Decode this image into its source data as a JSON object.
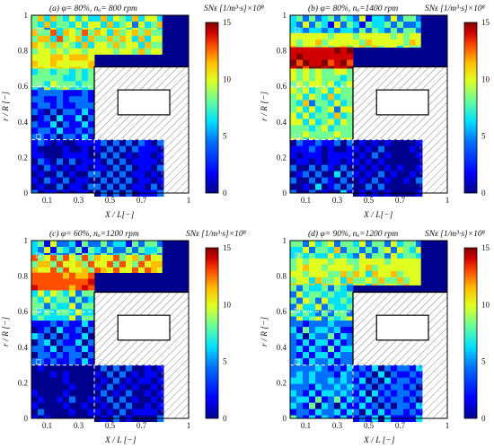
{
  "figure": {
    "description_visible": false
  },
  "colorbar": {
    "ticks": [
      "0",
      "5",
      "10",
      "15"
    ],
    "label": "SNᴇ [1/m³·s]×10⁸",
    "colors": [
      "#00008f",
      "#0000ff",
      "#0070ff",
      "#00e0ff",
      "#70ff90",
      "#e0ff20",
      "#ffc000",
      "#ff5000",
      "#d00000",
      "#800000"
    ]
  },
  "chart_data": [
    {
      "type": "heatmap",
      "panel": "(a)",
      "title": "(a)    φ= 80%, nₒ= 800 rpm",
      "xlabel": "X / L[−]",
      "ylabel": "r / R [−]",
      "xlim": [
        0,
        1
      ],
      "ylim": [
        0,
        1
      ],
      "zlim": [
        0,
        15
      ],
      "x_ticks": [
        "0.1",
        "0.3",
        "0.5",
        "0.7",
        "1"
      ],
      "y_ticks": [
        "0",
        "0.2",
        "0.4",
        "0.6",
        "0.8",
        "1"
      ],
      "colorbar_label": "SNᴇ [1/m³·s]×10⁸",
      "colorbar_ticks": [
        "0",
        "5",
        "10",
        "15"
      ],
      "bands": [
        {
          "y0": 0.92,
          "y1": 1.0,
          "x0": 0.0,
          "x1": 0.83,
          "mean": 7
        },
        {
          "y0": 0.78,
          "y1": 0.92,
          "x0": 0.0,
          "x1": 0.83,
          "mean": 8
        },
        {
          "y0": 0.7,
          "y1": 0.78,
          "x0": 0.0,
          "x1": 0.4,
          "mean": 9
        },
        {
          "y0": 0.58,
          "y1": 0.7,
          "x0": 0.0,
          "x1": 0.4,
          "mean": 6
        },
        {
          "y0": 0.3,
          "y1": 0.58,
          "x0": 0.0,
          "x1": 0.4,
          "mean": 3
        },
        {
          "y0": 0.0,
          "y1": 0.3,
          "x0": 0.0,
          "x1": 0.4,
          "mean": 1.5
        },
        {
          "y0": 0.0,
          "y1": 0.3,
          "x0": 0.4,
          "x1": 0.83,
          "mean": 2
        }
      ]
    },
    {
      "type": "heatmap",
      "panel": "(b)",
      "title": "(b)    φ= 80%, nₒ=1400 rpm",
      "xlabel": "X / L[−]",
      "ylabel": "r / R [−]",
      "xlim": [
        0,
        1
      ],
      "ylim": [
        0,
        1
      ],
      "zlim": [
        0,
        15
      ],
      "x_ticks": [
        "0.1",
        "0.3",
        "0.5",
        "0.7",
        "1"
      ],
      "y_ticks": [
        "0",
        "0.2",
        "0.4",
        "0.6",
        "0.8",
        "1"
      ],
      "colorbar_label": "SNᴇ [1/m³·s]×10⁸",
      "colorbar_ticks": [
        "0",
        "5",
        "10",
        "15"
      ],
      "bands": [
        {
          "y0": 0.9,
          "y1": 1.0,
          "x0": 0.0,
          "x1": 0.83,
          "mean": 5
        },
        {
          "y0": 0.82,
          "y1": 0.9,
          "x0": 0.0,
          "x1": 0.83,
          "mean": 8
        },
        {
          "y0": 0.7,
          "y1": 0.82,
          "x0": 0.0,
          "x1": 0.4,
          "mean": 13
        },
        {
          "y0": 0.3,
          "y1": 0.7,
          "x0": 0.0,
          "x1": 0.4,
          "mean": 7
        },
        {
          "y0": 0.0,
          "y1": 0.3,
          "x0": 0.0,
          "x1": 0.4,
          "mean": 2
        },
        {
          "y0": 0.0,
          "y1": 0.3,
          "x0": 0.4,
          "x1": 0.83,
          "mean": 1
        }
      ]
    },
    {
      "type": "heatmap",
      "panel": "(c)",
      "title": "(c)    φ= 60%, nₒ=1200 rpm",
      "xlabel": "X / L [−]",
      "ylabel": "r / R [−]",
      "xlim": [
        0,
        1
      ],
      "ylim": [
        0,
        1
      ],
      "zlim": [
        0,
        15
      ],
      "x_ticks": [
        "0.1",
        "0.3",
        "0.5",
        "0.7",
        "1"
      ],
      "y_ticks": [
        "0",
        "0.2",
        "0.4",
        "0.6",
        "0.8",
        "1"
      ],
      "colorbar_label": "SNᴇ [1/m³·s]×10⁸",
      "colorbar_ticks": [
        "0",
        "5",
        "10",
        "15"
      ],
      "bands": [
        {
          "y0": 0.92,
          "y1": 1.0,
          "x0": 0.0,
          "x1": 0.83,
          "mean": 5
        },
        {
          "y0": 0.82,
          "y1": 0.92,
          "x0": 0.0,
          "x1": 0.83,
          "mean": 9
        },
        {
          "y0": 0.72,
          "y1": 0.82,
          "x0": 0.0,
          "x1": 0.4,
          "mean": 11
        },
        {
          "y0": 0.55,
          "y1": 0.72,
          "x0": 0.0,
          "x1": 0.4,
          "mean": 6
        },
        {
          "y0": 0.3,
          "y1": 0.55,
          "x0": 0.0,
          "x1": 0.4,
          "mean": 3
        },
        {
          "y0": 0.0,
          "y1": 0.3,
          "x0": 0.0,
          "x1": 0.4,
          "mean": 0.5
        },
        {
          "y0": 0.0,
          "y1": 0.3,
          "x0": 0.4,
          "x1": 0.83,
          "mean": 1.5
        }
      ]
    },
    {
      "type": "heatmap",
      "panel": "(d)",
      "title": "(d)    φ= 90%, nₒ=1200 rpm",
      "xlabel": "X / L [−]",
      "ylabel": "r / R [−]",
      "xlim": [
        0,
        1
      ],
      "ylim": [
        0,
        1
      ],
      "zlim": [
        0,
        15
      ],
      "x_ticks": [
        "0.1",
        "0.3",
        "0.5",
        "0.7",
        "1"
      ],
      "y_ticks": [
        "0",
        "0.2",
        "0.4",
        "0.6",
        "0.8",
        "1"
      ],
      "colorbar_label": "SNᴇ [1/m³·s]×10⁸",
      "colorbar_ticks": [
        "0",
        "5",
        "10",
        "15"
      ],
      "bands": [
        {
          "y0": 0.9,
          "y1": 1.0,
          "x0": 0.0,
          "x1": 0.83,
          "mean": 6
        },
        {
          "y0": 0.75,
          "y1": 0.9,
          "x0": 0.0,
          "x1": 0.83,
          "mean": 8
        },
        {
          "y0": 0.55,
          "y1": 0.75,
          "x0": 0.0,
          "x1": 0.4,
          "mean": 6
        },
        {
          "y0": 0.3,
          "y1": 0.55,
          "x0": 0.0,
          "x1": 0.4,
          "mean": 4
        },
        {
          "y0": 0.0,
          "y1": 0.3,
          "x0": 0.0,
          "x1": 0.4,
          "mean": 4
        },
        {
          "y0": 0.0,
          "y1": 0.3,
          "x0": 0.4,
          "x1": 0.83,
          "mean": 3
        }
      ]
    }
  ]
}
